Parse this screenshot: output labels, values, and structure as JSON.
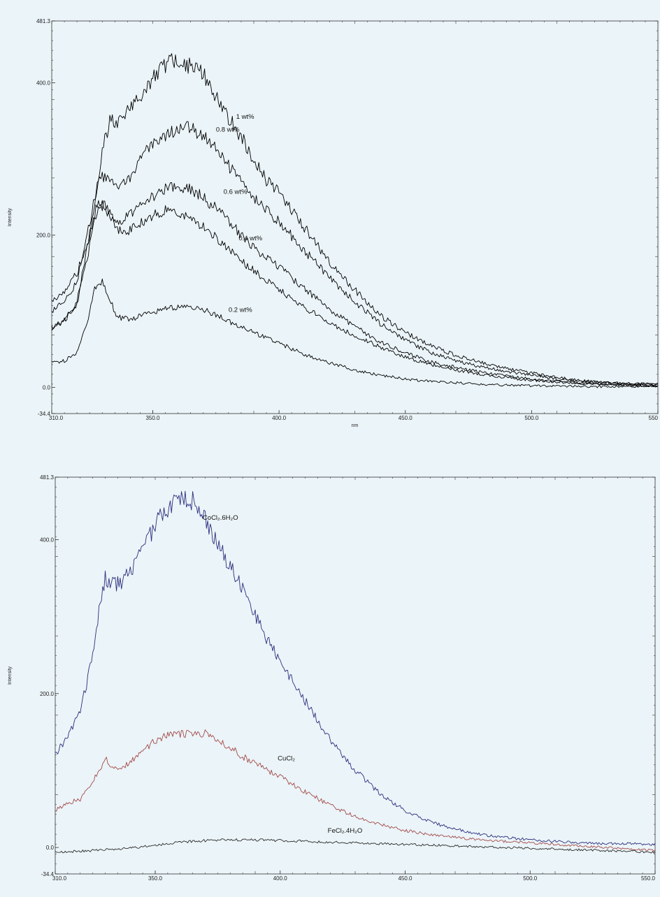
{
  "chart_data": [
    {
      "type": "line",
      "title": "",
      "xlabel": "nm",
      "ylabel": "Intensity",
      "xlim": [
        310.0,
        550.0
      ],
      "ylim": [
        -34.4,
        481.3
      ],
      "grid": false,
      "x_ticks": [
        {
          "value": 310.0,
          "label": "310.0"
        },
        {
          "value": 350.0,
          "label": "350.0"
        },
        {
          "value": 400.0,
          "label": "400.0"
        },
        {
          "value": 450.0,
          "label": "450.0"
        },
        {
          "value": 500.0,
          "label": "500.0"
        },
        {
          "value": 550.0,
          "label": "550"
        }
      ],
      "y_ticks": [
        {
          "value": -34.4,
          "label": "-34.4"
        },
        {
          "value": 0.0,
          "label": "0.0"
        },
        {
          "value": 200.0,
          "label": "200.0"
        },
        {
          "value": 400.0,
          "label": "400.0"
        },
        {
          "value": 481.3,
          "label": "481.3"
        }
      ],
      "series": [
        {
          "name": "1 wt%",
          "color": "#000000",
          "label_at": [
            383,
            353
          ],
          "x": [
            310,
            315,
            320,
            325,
            330,
            333,
            336,
            340,
            345,
            350,
            355,
            358,
            362,
            366,
            370,
            375,
            380,
            385,
            390,
            395,
            400,
            410,
            420,
            430,
            440,
            450,
            460,
            470,
            480,
            490,
            500,
            510,
            520,
            530,
            540,
            550
          ],
          "y": [
            112,
            125,
            150,
            200,
            310,
            350,
            345,
            362,
            385,
            405,
            425,
            430,
            425,
            420,
            410,
            385,
            355,
            330,
            300,
            272,
            255,
            210,
            165,
            128,
            95,
            72,
            55,
            42,
            33,
            25,
            19,
            13,
            9,
            6,
            5,
            4
          ]
        },
        {
          "name": "0.8 wt%",
          "color": "#000000",
          "label_at": [
            375,
            336
          ],
          "x": [
            310,
            315,
            320,
            325,
            329,
            332,
            336,
            340,
            345,
            350,
            355,
            360,
            365,
            370,
            375,
            380,
            385,
            390,
            395,
            400,
            410,
            420,
            430,
            440,
            450,
            460,
            470,
            480,
            490,
            500,
            510,
            520,
            530,
            540,
            550
          ],
          "y": [
            100,
            112,
            138,
            215,
            280,
            272,
            262,
            272,
            298,
            320,
            332,
            342,
            340,
            330,
            313,
            292,
            270,
            250,
            233,
            217,
            180,
            144,
            112,
            84,
            62,
            46,
            35,
            27,
            21,
            16,
            11,
            8,
            6,
            5,
            4
          ]
        },
        {
          "name": "0.6 wt%",
          "color": "#000000",
          "label_at": [
            378,
            254
          ],
          "x": [
            310,
            315,
            320,
            325,
            328,
            331,
            335,
            340,
            345,
            350,
            355,
            360,
            365,
            370,
            375,
            380,
            385,
            390,
            395,
            400,
            410,
            420,
            430,
            440,
            450,
            460,
            470,
            480,
            490,
            500,
            510,
            520,
            530,
            540,
            550
          ],
          "y": [
            78,
            88,
            110,
            185,
            235,
            240,
            215,
            225,
            240,
            252,
            260,
            263,
            260,
            250,
            235,
            218,
            200,
            185,
            170,
            158,
            130,
            102,
            80,
            60,
            45,
            34,
            26,
            20,
            15,
            11,
            8,
            6,
            4,
            3,
            2
          ]
        },
        {
          "name": "0.4 wt%",
          "color": "#000000",
          "label_at": [
            384,
            193
          ],
          "x": [
            310,
            315,
            320,
            325,
            328,
            331,
            335,
            340,
            345,
            350,
            355,
            360,
            365,
            370,
            375,
            380,
            385,
            390,
            395,
            400,
            410,
            420,
            430,
            440,
            450,
            460,
            470,
            480,
            490,
            500,
            510,
            520,
            530,
            540,
            550
          ],
          "y": [
            78,
            88,
            112,
            200,
            240,
            238,
            210,
            205,
            215,
            225,
            232,
            228,
            220,
            210,
            196,
            182,
            167,
            153,
            140,
            128,
            105,
            85,
            68,
            53,
            40,
            30,
            23,
            17,
            13,
            9,
            7,
            5,
            4,
            3,
            2
          ]
        },
        {
          "name": "0.2 wt%",
          "color": "#000000",
          "label_at": [
            380,
            99
          ],
          "x": [
            310,
            315,
            320,
            324,
            327,
            330,
            333,
            336,
            340,
            345,
            350,
            355,
            360,
            365,
            370,
            375,
            380,
            385,
            390,
            395,
            400,
            410,
            420,
            430,
            440,
            450,
            460,
            470,
            480,
            490,
            500,
            510,
            520,
            530,
            540,
            550
          ],
          "y": [
            32,
            35,
            45,
            85,
            128,
            140,
            115,
            92,
            90,
            93,
            98,
            103,
            106,
            104,
            102,
            95,
            87,
            80,
            72,
            65,
            58,
            43,
            32,
            23,
            16,
            11,
            8,
            6,
            4,
            3,
            2,
            2,
            1,
            1,
            1,
            1
          ]
        }
      ]
    },
    {
      "type": "line",
      "title": "",
      "xlabel": "",
      "ylabel": "Intensity",
      "xlim": [
        310.0,
        550.0
      ],
      "ylim": [
        -34.4,
        481.3
      ],
      "grid": false,
      "x_ticks": [
        {
          "value": 310.0,
          "label": "310.0"
        },
        {
          "value": 350.0,
          "label": "350.0"
        },
        {
          "value": 400.0,
          "label": "400.0"
        },
        {
          "value": 450.0,
          "label": "450.0"
        },
        {
          "value": 500.0,
          "label": "500.0"
        },
        {
          "value": 550.0,
          "label": "550.0"
        }
      ],
      "y_ticks": [
        {
          "value": -34.4,
          "label": "-34.4"
        },
        {
          "value": 0.0,
          "label": "0.0"
        },
        {
          "value": 200.0,
          "label": "200.0"
        },
        {
          "value": 400.0,
          "label": "400.0"
        },
        {
          "value": 481.3,
          "label": "481.3"
        }
      ],
      "series": [
        {
          "name": "CoCl₂.6H₂O",
          "color": "#2b2f7e",
          "label_at": [
            369,
            426
          ],
          "x": [
            310,
            315,
            320,
            325,
            328,
            330,
            333,
            336,
            340,
            345,
            350,
            355,
            360,
            365,
            370,
            375,
            380,
            385,
            390,
            395,
            400,
            410,
            420,
            430,
            440,
            450,
            460,
            470,
            480,
            490,
            500,
            510,
            520,
            530,
            540,
            550
          ],
          "y": [
            120,
            145,
            175,
            250,
            320,
            350,
            343,
            342,
            360,
            385,
            420,
            440,
            455,
            450,
            425,
            395,
            365,
            335,
            300,
            270,
            240,
            190,
            140,
            100,
            70,
            48,
            33,
            24,
            17,
            13,
            10,
            8,
            6,
            5,
            5,
            4
          ]
        },
        {
          "name": "CuCl₂",
          "color": "#a34a4a",
          "label_at": [
            399,
            113
          ],
          "x": [
            310,
            315,
            320,
            325,
            330,
            333,
            336,
            340,
            345,
            350,
            355,
            360,
            365,
            370,
            375,
            380,
            385,
            390,
            395,
            400,
            410,
            420,
            430,
            440,
            450,
            460,
            470,
            480,
            490,
            500,
            510,
            520,
            530,
            540,
            550
          ],
          "y": [
            48,
            58,
            63,
            85,
            115,
            105,
            103,
            110,
            125,
            140,
            145,
            148,
            148,
            148,
            140,
            130,
            118,
            110,
            100,
            92,
            72,
            55,
            40,
            30,
            22,
            17,
            13,
            10,
            8,
            6,
            4,
            2,
            0,
            -2,
            -4
          ]
        },
        {
          "name": "FeCl₂.4H₂O",
          "color": "#2a2a2a",
          "label_at": [
            419,
            19
          ],
          "x": [
            310,
            320,
            330,
            340,
            350,
            360,
            370,
            380,
            390,
            400,
            410,
            420,
            430,
            440,
            450,
            460,
            470,
            480,
            490,
            500,
            510,
            520,
            530,
            540,
            550
          ],
          "y": [
            -6,
            -5,
            -3,
            -1,
            3,
            7,
            9,
            10,
            10,
            9,
            8,
            7,
            6,
            5,
            4,
            3,
            2,
            1,
            0,
            -1,
            -2,
            -3,
            -4,
            -5,
            -6
          ]
        }
      ]
    }
  ]
}
